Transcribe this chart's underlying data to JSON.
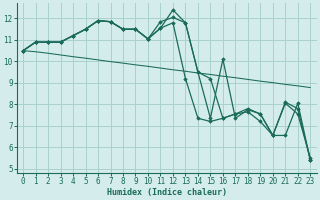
{
  "xlabel": "Humidex (Indice chaleur)",
  "bg_color": "#d4ecec",
  "grid_color": "#aad0d0",
  "line_color": "#1a6b5a",
  "xlim": [
    -0.5,
    23.5
  ],
  "ylim": [
    4.8,
    12.7
  ],
  "yticks": [
    5,
    6,
    7,
    8,
    9,
    10,
    11,
    12
  ],
  "xticks": [
    0,
    1,
    2,
    3,
    4,
    5,
    6,
    7,
    8,
    9,
    10,
    11,
    12,
    13,
    14,
    15,
    16,
    17,
    18,
    19,
    20,
    21,
    22,
    23
  ],
  "series": [
    [
      10.5,
      10.9,
      10.9,
      10.9,
      11.2,
      11.5,
      11.9,
      11.85,
      11.5,
      11.5,
      11.05,
      11.85,
      12.05,
      11.8,
      9.5,
      9.2,
      7.35,
      7.55,
      7.8,
      7.55,
      6.55,
      8.05,
      7.55,
      5.5
    ],
    [
      10.5,
      10.9,
      10.9,
      10.9,
      11.2,
      11.5,
      11.9,
      11.85,
      11.5,
      11.5,
      11.05,
      11.55,
      12.4,
      11.8,
      9.5,
      7.35,
      10.1,
      7.35,
      7.75,
      7.55,
      6.55,
      8.1,
      7.8,
      5.4
    ],
    [
      10.5,
      10.9,
      10.9,
      10.9,
      11.2,
      11.5,
      11.9,
      11.85,
      11.5,
      11.5,
      11.05,
      11.55,
      11.8,
      9.2,
      7.35,
      7.2,
      7.35,
      7.55,
      7.65,
      7.2,
      6.55,
      6.55,
      8.05,
      5.4
    ],
    [
      10.5,
      10.45,
      10.38,
      10.3,
      10.22,
      10.15,
      10.07,
      9.99,
      9.92,
      9.84,
      9.77,
      9.69,
      9.61,
      9.54,
      9.46,
      9.39,
      9.31,
      9.24,
      9.16,
      9.08,
      9.01,
      8.93,
      8.86,
      8.78
    ]
  ],
  "series_markers": [
    true,
    true,
    true,
    false
  ],
  "series_linewidths": [
    0.9,
    0.9,
    0.9,
    0.75
  ],
  "series_linestyles": [
    "-",
    "-",
    "-",
    "-"
  ]
}
